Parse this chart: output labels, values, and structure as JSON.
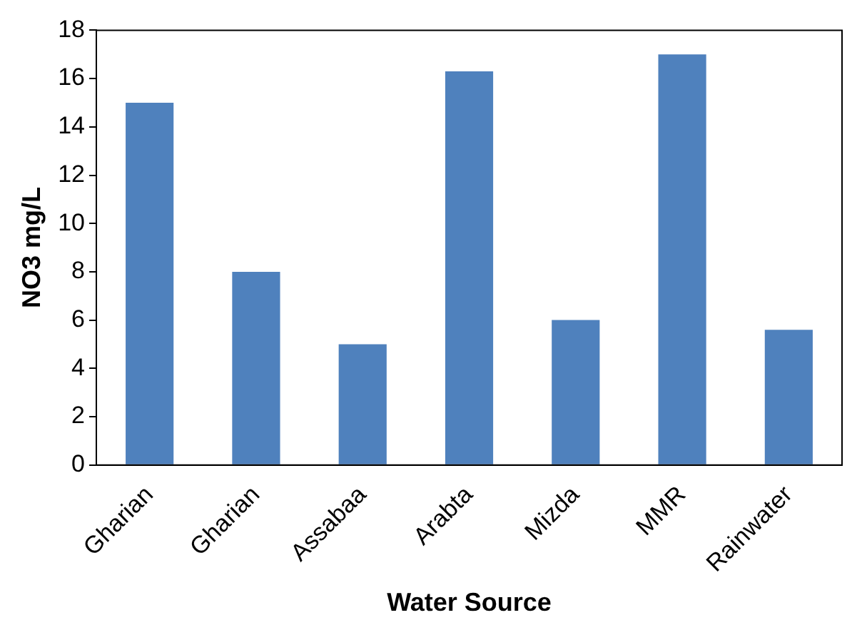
{
  "chart_data": {
    "type": "bar",
    "xlabel": "Water Source",
    "ylabel": "NO3 mg/L",
    "categories": [
      "Gharian",
      "Gharian",
      "Assabaa",
      "Arabta",
      "Mizda",
      "MMR",
      "Rainwater"
    ],
    "values": [
      15,
      8,
      5,
      16.3,
      6,
      17,
      5.6
    ],
    "color": "#4f81bd",
    "ylim": [
      0,
      18
    ],
    "yticks": [
      0,
      2,
      4,
      6,
      8,
      10,
      12,
      14,
      16,
      18
    ],
    "grid": false,
    "legend": false
  }
}
